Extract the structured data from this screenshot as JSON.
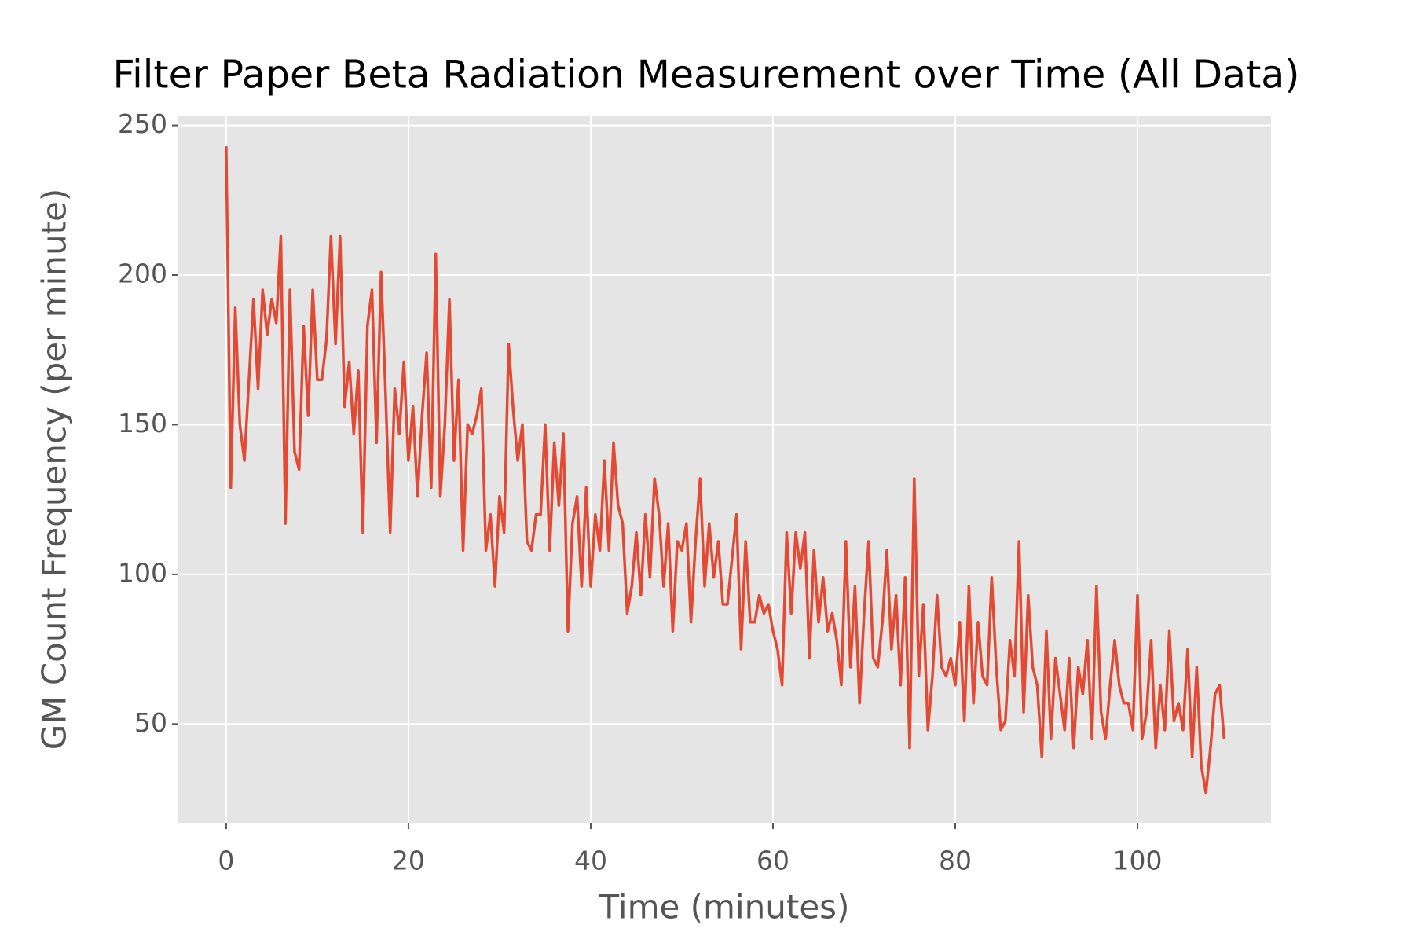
{
  "chart_data": {
    "type": "line",
    "title": "Filter Paper Beta Radiation Measurement over Time (All Data)",
    "xlabel": "Time (minutes)",
    "ylabel": "GM Count Frequency (per minute)",
    "x": [
      0,
      0.5,
      1,
      1.5,
      2,
      2.5,
      3,
      3.5,
      4,
      4.5,
      5,
      5.5,
      6,
      6.5,
      7,
      7.5,
      8,
      8.5,
      9,
      9.5,
      10,
      10.5,
      11,
      11.5,
      12,
      12.5,
      13,
      13.5,
      14,
      14.5,
      15,
      15.5,
      16,
      16.5,
      17,
      17.5,
      18,
      18.5,
      19,
      19.5,
      20,
      20.5,
      21,
      21.5,
      22,
      22.5,
      23,
      23.5,
      24,
      24.5,
      25,
      25.5,
      26,
      26.5,
      27,
      27.5,
      28,
      28.5,
      29,
      29.5,
      30,
      30.5,
      31,
      31.5,
      32,
      32.5,
      33,
      33.5,
      34,
      34.5,
      35,
      35.5,
      36,
      36.5,
      37,
      37.5,
      38,
      38.5,
      39,
      39.5,
      40,
      40.5,
      41,
      41.5,
      42,
      42.5,
      43,
      43.5,
      44,
      44.5,
      45,
      45.5,
      46,
      46.5,
      47,
      47.5,
      48,
      48.5,
      49,
      49.5,
      50,
      50.5,
      51,
      51.5,
      52,
      52.5,
      53,
      53.5,
      54,
      54.5,
      55,
      55.5,
      56,
      56.5,
      57,
      57.5,
      58,
      58.5,
      59,
      59.5,
      60,
      60.5,
      61,
      61.5,
      62,
      62.5,
      63,
      63.5,
      64,
      64.5,
      65,
      65.5,
      66,
      66.5,
      67,
      67.5,
      68,
      68.5,
      69,
      69.5,
      70,
      70.5,
      71,
      71.5,
      72,
      72.5,
      73,
      73.5,
      74,
      74.5,
      75,
      75.5,
      76,
      76.5,
      77,
      77.5,
      78,
      78.5,
      79,
      79.5,
      80,
      80.5,
      81,
      81.5,
      82,
      82.5,
      83,
      83.5,
      84,
      84.5,
      85,
      85.5,
      86,
      86.5,
      87,
      87.5,
      88,
      88.5,
      89,
      89.5,
      90,
      90.5,
      91,
      91.5,
      92,
      92.5,
      93,
      93.5,
      94,
      94.5,
      95,
      95.5,
      96,
      96.5,
      97,
      97.5,
      98,
      98.5,
      99,
      99.5,
      100,
      100.5,
      101,
      101.5,
      102,
      102.5,
      103,
      103.5,
      104,
      104.5,
      105,
      105.5,
      106,
      106.5,
      107,
      107.5,
      108,
      108.5,
      109,
      109.5
    ],
    "series": [
      {
        "color": "#e24a33",
        "values": [
          243,
          129,
          189,
          150,
          138,
          165,
          192,
          162,
          195,
          180,
          192,
          184,
          213,
          117,
          195,
          141,
          135,
          183,
          153,
          195,
          165,
          165,
          178,
          213,
          177,
          213,
          156,
          171,
          147,
          168,
          114,
          183,
          195,
          144,
          201,
          160,
          114,
          162,
          147,
          171,
          138,
          156,
          126,
          153,
          174,
          129,
          207,
          126,
          150,
          192,
          138,
          165,
          108,
          150,
          147,
          153,
          162,
          108,
          120,
          96,
          126,
          114,
          177,
          155,
          138,
          150,
          111,
          108,
          120,
          120,
          150,
          108,
          144,
          123,
          147,
          81,
          117,
          126,
          96,
          129,
          96,
          120,
          108,
          138,
          108,
          144,
          123,
          117,
          87,
          96,
          114,
          93,
          120,
          99,
          132,
          120,
          96,
          117,
          81,
          111,
          108,
          117,
          84,
          111,
          132,
          96,
          117,
          99,
          111,
          90,
          90,
          105,
          120,
          75,
          111,
          84,
          84,
          93,
          87,
          90,
          81,
          75,
          63,
          114,
          87,
          114,
          102,
          114,
          72,
          108,
          84,
          99,
          81,
          87,
          78,
          63,
          111,
          69,
          96,
          57,
          87,
          111,
          72,
          69,
          84,
          108,
          75,
          93,
          63,
          99,
          42,
          132,
          66,
          90,
          48,
          66,
          93,
          69,
          66,
          72,
          63,
          84,
          51,
          96,
          57,
          84,
          66,
          63,
          99,
          69,
          48,
          51,
          78,
          66,
          111,
          54,
          93,
          69,
          63,
          39,
          81,
          45,
          72,
          60,
          48,
          72,
          42,
          69,
          60,
          78,
          45,
          96,
          54,
          45,
          63,
          78,
          63,
          57,
          57,
          48,
          93,
          45,
          54,
          78,
          42,
          63,
          48,
          81,
          51,
          57,
          48,
          75,
          39,
          69,
          36,
          27,
          42,
          60,
          63,
          45
        ]
      }
    ],
    "xlim": [
      -5.25,
      114.65
    ],
    "xticks": [
      0,
      20,
      40,
      60,
      80,
      100
    ],
    "ylim": [
      17,
      253.3
    ],
    "yticks": [
      50,
      100,
      150,
      200,
      250
    ],
    "grid": true
  }
}
